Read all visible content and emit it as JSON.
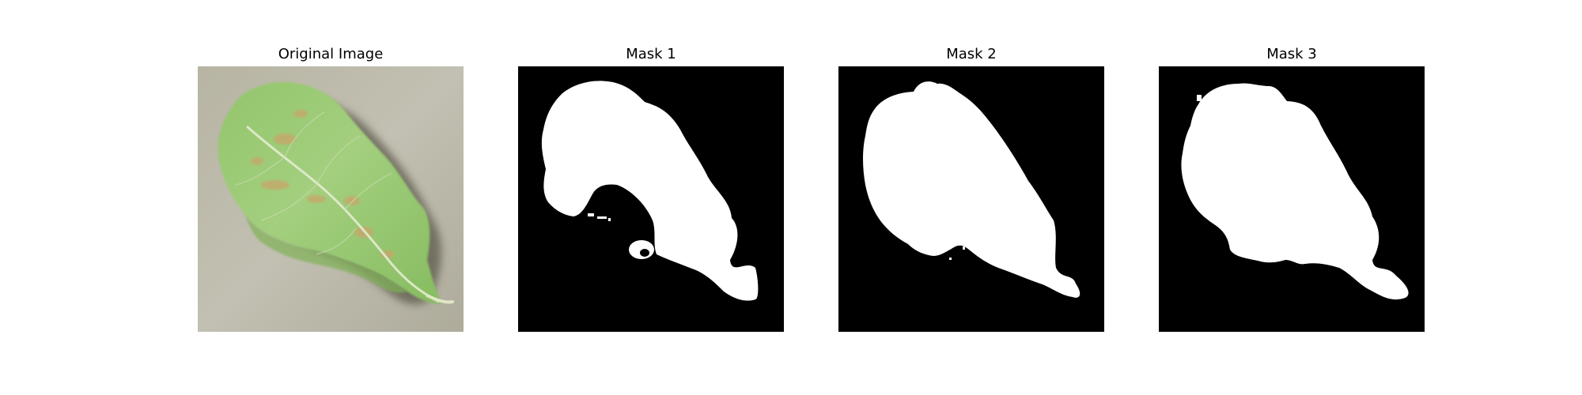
{
  "figure": {
    "panels": [
      {
        "title": "Original Image"
      },
      {
        "title": "Mask 1"
      },
      {
        "title": "Mask 2"
      },
      {
        "title": "Mask 3"
      }
    ]
  },
  "colors": {
    "mask_foreground": "#ffffff",
    "mask_background": "#000000",
    "leaf_green": "#8fc46a",
    "photo_background": "#b9b6a6"
  }
}
